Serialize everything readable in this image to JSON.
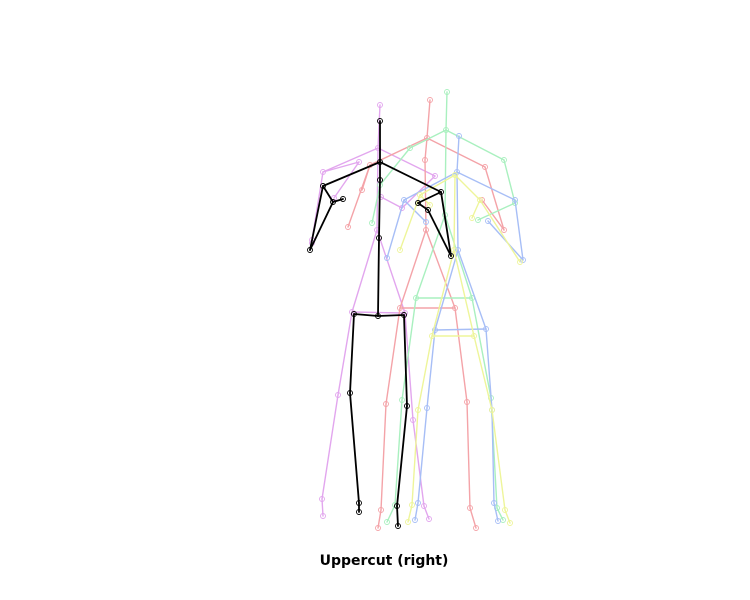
{
  "caption": "Uppercut (right)",
  "colors": {
    "main": "#000000",
    "pink": "#e2a6ee",
    "red": "#f4a3a8",
    "green": "#a9f0bf",
    "blue": "#a7bef6",
    "yellow": "#eef59a"
  }
}
